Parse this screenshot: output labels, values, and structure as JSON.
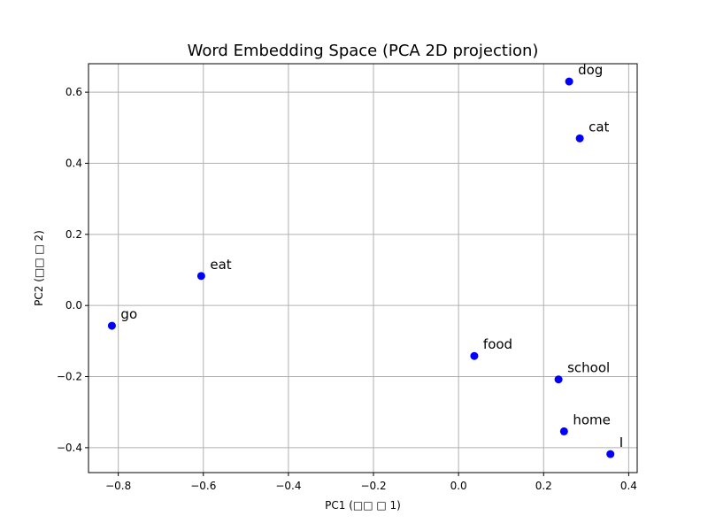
{
  "chart_data": {
    "type": "scatter",
    "title": "Word Embedding Space (PCA 2D projection)",
    "xlabel": "PC1 (□□ □ 1)",
    "ylabel": "PC2 (□□ □ 2)",
    "xlim": [
      -0.87,
      0.42
    ],
    "ylim": [
      -0.47,
      0.68
    ],
    "xticks": [
      -0.8,
      -0.6,
      -0.4,
      -0.2,
      0.0,
      0.2,
      0.4
    ],
    "xtick_labels": [
      "−0.8",
      "−0.6",
      "−0.4",
      "−0.2",
      "0.0",
      "0.2",
      "0.4"
    ],
    "yticks": [
      -0.4,
      -0.2,
      0.0,
      0.2,
      0.4,
      0.6
    ],
    "ytick_labels": [
      "−0.4",
      "−0.2",
      "0.0",
      "0.2",
      "0.4",
      "0.6"
    ],
    "grid": true,
    "marker_color": "#0000ff",
    "grid_color": "#b0b0b0",
    "points": [
      {
        "label": "dog",
        "x": 0.26,
        "y": 0.63
      },
      {
        "label": "cat",
        "x": 0.285,
        "y": 0.47
      },
      {
        "label": "eat",
        "x": -0.605,
        "y": 0.083
      },
      {
        "label": "go",
        "x": -0.815,
        "y": -0.057
      },
      {
        "label": "food",
        "x": 0.037,
        "y": -0.142
      },
      {
        "label": "school",
        "x": 0.235,
        "y": -0.208
      },
      {
        "label": "home",
        "x": 0.248,
        "y": -0.354
      },
      {
        "label": "I",
        "x": 0.357,
        "y": -0.418
      }
    ]
  }
}
